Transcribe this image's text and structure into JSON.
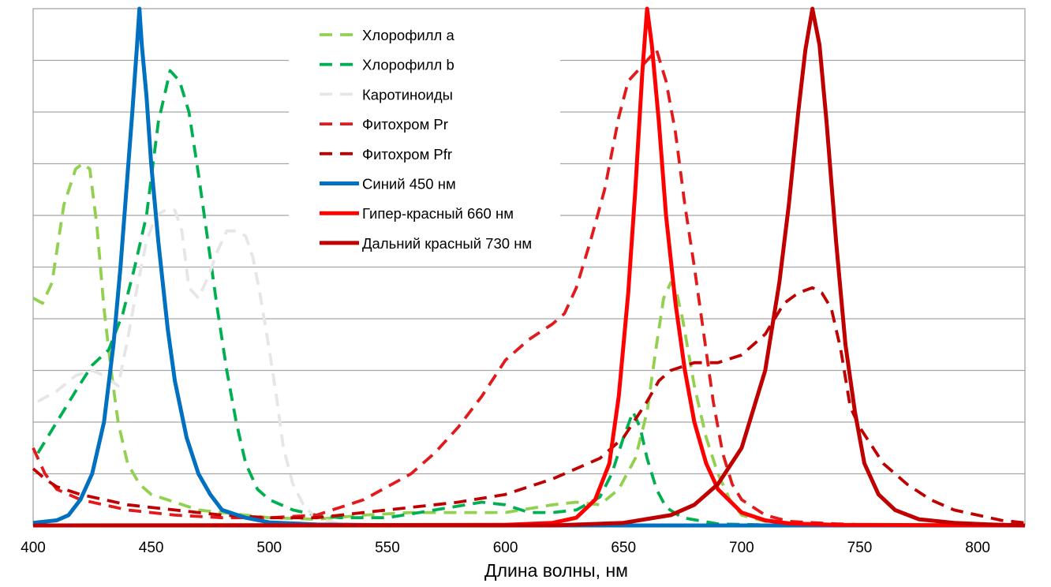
{
  "chart_data": {
    "type": "line",
    "xlabel": "Длина волны, нм",
    "ylabel": "",
    "xlim": [
      400,
      820
    ],
    "ylim": [
      0,
      1
    ],
    "x_ticks": [
      400,
      450,
      500,
      550,
      600,
      650,
      700,
      750,
      800
    ],
    "y_gridlines": 10,
    "grid": true,
    "legend_position": "top-center",
    "series": [
      {
        "name": "Хлорофилл a",
        "color": "#92D050",
        "dash": "dashed",
        "points": [
          [
            400,
            0.44
          ],
          [
            404,
            0.43
          ],
          [
            408,
            0.47
          ],
          [
            413,
            0.62
          ],
          [
            418,
            0.69
          ],
          [
            421,
            0.7
          ],
          [
            424,
            0.69
          ],
          [
            427,
            0.58
          ],
          [
            430,
            0.42
          ],
          [
            433,
            0.3
          ],
          [
            436,
            0.2
          ],
          [
            440,
            0.12
          ],
          [
            445,
            0.08
          ],
          [
            450,
            0.06
          ],
          [
            460,
            0.045
          ],
          [
            470,
            0.03
          ],
          [
            480,
            0.025
          ],
          [
            500,
            0.015
          ],
          [
            520,
            0.012
          ],
          [
            540,
            0.02
          ],
          [
            560,
            0.025
          ],
          [
            580,
            0.025
          ],
          [
            600,
            0.025
          ],
          [
            620,
            0.04
          ],
          [
            630,
            0.045
          ],
          [
            640,
            0.04
          ],
          [
            648,
            0.07
          ],
          [
            655,
            0.13
          ],
          [
            660,
            0.22
          ],
          [
            664,
            0.35
          ],
          [
            667,
            0.44
          ],
          [
            670,
            0.47
          ],
          [
            672,
            0.46
          ],
          [
            675,
            0.4
          ],
          [
            680,
            0.27
          ],
          [
            685,
            0.17
          ],
          [
            690,
            0.1
          ],
          [
            695,
            0.05
          ],
          [
            700,
            0.02
          ],
          [
            710,
            0.008
          ],
          [
            730,
            0.003
          ],
          [
            760,
            0.0
          ],
          [
            820,
            0.0
          ]
        ]
      },
      {
        "name": "Хлорофилл b",
        "color": "#00B050",
        "dash": "dashed",
        "points": [
          [
            402,
            0.14
          ],
          [
            410,
            0.2
          ],
          [
            418,
            0.26
          ],
          [
            425,
            0.31
          ],
          [
            432,
            0.34
          ],
          [
            438,
            0.41
          ],
          [
            443,
            0.5
          ],
          [
            448,
            0.6
          ],
          [
            453,
            0.78
          ],
          [
            458,
            0.88
          ],
          [
            462,
            0.86
          ],
          [
            466,
            0.8
          ],
          [
            470,
            0.68
          ],
          [
            474,
            0.55
          ],
          [
            478,
            0.42
          ],
          [
            482,
            0.3
          ],
          [
            486,
            0.2
          ],
          [
            490,
            0.12
          ],
          [
            495,
            0.07
          ],
          [
            500,
            0.05
          ],
          [
            510,
            0.03
          ],
          [
            520,
            0.02
          ],
          [
            530,
            0.015
          ],
          [
            550,
            0.015
          ],
          [
            570,
            0.03
          ],
          [
            590,
            0.045
          ],
          [
            600,
            0.04
          ],
          [
            610,
            0.025
          ],
          [
            620,
            0.025
          ],
          [
            630,
            0.03
          ],
          [
            640,
            0.055
          ],
          [
            645,
            0.1
          ],
          [
            650,
            0.17
          ],
          [
            654,
            0.22
          ],
          [
            657,
            0.19
          ],
          [
            660,
            0.13
          ],
          [
            664,
            0.07
          ],
          [
            668,
            0.035
          ],
          [
            675,
            0.015
          ],
          [
            690,
            0.003
          ],
          [
            720,
            0.0
          ],
          [
            820,
            0.0
          ]
        ]
      },
      {
        "name": "Каротиноиды",
        "color": "#E7E6E6",
        "dash": "dashed",
        "points": [
          [
            402,
            0.24
          ],
          [
            410,
            0.26
          ],
          [
            418,
            0.29
          ],
          [
            425,
            0.3
          ],
          [
            430,
            0.29
          ],
          [
            436,
            0.27
          ],
          [
            440,
            0.36
          ],
          [
            444,
            0.46
          ],
          [
            448,
            0.55
          ],
          [
            452,
            0.6
          ],
          [
            456,
            0.61
          ],
          [
            460,
            0.61
          ],
          [
            463,
            0.57
          ],
          [
            466,
            0.46
          ],
          [
            470,
            0.44
          ],
          [
            474,
            0.48
          ],
          [
            478,
            0.53
          ],
          [
            482,
            0.57
          ],
          [
            486,
            0.57
          ],
          [
            490,
            0.56
          ],
          [
            493,
            0.52
          ],
          [
            496,
            0.45
          ],
          [
            500,
            0.34
          ],
          [
            503,
            0.25
          ],
          [
            506,
            0.15
          ],
          [
            510,
            0.08
          ],
          [
            515,
            0.035
          ],
          [
            520,
            0.015
          ],
          [
            530,
            0.003
          ],
          [
            550,
            0.0
          ],
          [
            820,
            0.0
          ]
        ]
      },
      {
        "name": "Фитохром Pr",
        "color": "#E31A1C",
        "dash": "dashed",
        "points": [
          [
            400,
            0.15
          ],
          [
            405,
            0.1
          ],
          [
            410,
            0.07
          ],
          [
            420,
            0.05
          ],
          [
            440,
            0.03
          ],
          [
            460,
            0.02
          ],
          [
            480,
            0.015
          ],
          [
            500,
            0.015
          ],
          [
            520,
            0.02
          ],
          [
            540,
            0.05
          ],
          [
            560,
            0.1
          ],
          [
            570,
            0.14
          ],
          [
            580,
            0.19
          ],
          [
            590,
            0.25
          ],
          [
            600,
            0.32
          ],
          [
            610,
            0.36
          ],
          [
            620,
            0.39
          ],
          [
            625,
            0.41
          ],
          [
            630,
            0.46
          ],
          [
            636,
            0.55
          ],
          [
            642,
            0.65
          ],
          [
            648,
            0.79
          ],
          [
            652,
            0.86
          ],
          [
            656,
            0.88
          ],
          [
            660,
            0.9
          ],
          [
            664,
            0.92
          ],
          [
            668,
            0.86
          ],
          [
            672,
            0.76
          ],
          [
            676,
            0.62
          ],
          [
            680,
            0.5
          ],
          [
            684,
            0.37
          ],
          [
            688,
            0.24
          ],
          [
            692,
            0.14
          ],
          [
            696,
            0.08
          ],
          [
            700,
            0.05
          ],
          [
            710,
            0.02
          ],
          [
            720,
            0.008
          ],
          [
            740,
            0.003
          ],
          [
            760,
            0.0
          ],
          [
            820,
            0.0
          ]
        ]
      },
      {
        "name": "Фитохром Pfr",
        "color": "#C00000",
        "dash": "dashed",
        "points": [
          [
            400,
            0.11
          ],
          [
            405,
            0.09
          ],
          [
            410,
            0.075
          ],
          [
            420,
            0.06
          ],
          [
            440,
            0.04
          ],
          [
            460,
            0.03
          ],
          [
            480,
            0.02
          ],
          [
            500,
            0.015
          ],
          [
            520,
            0.015
          ],
          [
            540,
            0.025
          ],
          [
            560,
            0.035
          ],
          [
            580,
            0.045
          ],
          [
            600,
            0.06
          ],
          [
            620,
            0.09
          ],
          [
            640,
            0.13
          ],
          [
            650,
            0.17
          ],
          [
            660,
            0.24
          ],
          [
            665,
            0.28
          ],
          [
            670,
            0.3
          ],
          [
            680,
            0.315
          ],
          [
            690,
            0.315
          ],
          [
            700,
            0.33
          ],
          [
            710,
            0.37
          ],
          [
            718,
            0.43
          ],
          [
            724,
            0.45
          ],
          [
            730,
            0.46
          ],
          [
            734,
            0.45
          ],
          [
            738,
            0.42
          ],
          [
            742,
            0.34
          ],
          [
            746,
            0.23
          ],
          [
            750,
            0.19
          ],
          [
            760,
            0.12
          ],
          [
            770,
            0.08
          ],
          [
            780,
            0.05
          ],
          [
            790,
            0.03
          ],
          [
            800,
            0.02
          ],
          [
            810,
            0.01
          ],
          [
            820,
            0.005
          ]
        ]
      },
      {
        "name": "Синий 450 нм",
        "color": "#0070C0",
        "dash": "solid",
        "points": [
          [
            400,
            0.005
          ],
          [
            410,
            0.01
          ],
          [
            415,
            0.02
          ],
          [
            420,
            0.05
          ],
          [
            425,
            0.1
          ],
          [
            430,
            0.2
          ],
          [
            434,
            0.35
          ],
          [
            437,
            0.5
          ],
          [
            440,
            0.68
          ],
          [
            442,
            0.8
          ],
          [
            444,
            0.93
          ],
          [
            445,
            1.0
          ],
          [
            446,
            0.93
          ],
          [
            448,
            0.83
          ],
          [
            450,
            0.7
          ],
          [
            453,
            0.55
          ],
          [
            457,
            0.38
          ],
          [
            460,
            0.28
          ],
          [
            465,
            0.17
          ],
          [
            470,
            0.1
          ],
          [
            475,
            0.06
          ],
          [
            480,
            0.03
          ],
          [
            490,
            0.015
          ],
          [
            500,
            0.006
          ],
          [
            520,
            0.002
          ],
          [
            560,
            0.0
          ],
          [
            820,
            0.0
          ]
        ]
      },
      {
        "name": "Гипер-красный 660 нм",
        "color": "#FF0000",
        "dash": "solid",
        "points": [
          [
            400,
            0.0
          ],
          [
            600,
            0.001
          ],
          [
            620,
            0.005
          ],
          [
            630,
            0.015
          ],
          [
            638,
            0.05
          ],
          [
            644,
            0.12
          ],
          [
            648,
            0.25
          ],
          [
            652,
            0.45
          ],
          [
            655,
            0.65
          ],
          [
            658,
            0.88
          ],
          [
            660,
            1.0
          ],
          [
            662,
            0.93
          ],
          [
            665,
            0.78
          ],
          [
            668,
            0.6
          ],
          [
            672,
            0.43
          ],
          [
            676,
            0.3
          ],
          [
            680,
            0.2
          ],
          [
            685,
            0.12
          ],
          [
            690,
            0.07
          ],
          [
            700,
            0.025
          ],
          [
            710,
            0.01
          ],
          [
            720,
            0.004
          ],
          [
            740,
            0.001
          ],
          [
            820,
            0.0
          ]
        ]
      },
      {
        "name": "Дальний красный 730 нм",
        "color": "#C00000",
        "dash": "solid",
        "points": [
          [
            400,
            0.0
          ],
          [
            620,
            0.0
          ],
          [
            650,
            0.005
          ],
          [
            670,
            0.02
          ],
          [
            680,
            0.04
          ],
          [
            690,
            0.08
          ],
          [
            700,
            0.15
          ],
          [
            710,
            0.3
          ],
          [
            716,
            0.47
          ],
          [
            720,
            0.62
          ],
          [
            724,
            0.8
          ],
          [
            727,
            0.92
          ],
          [
            730,
            1.0
          ],
          [
            733,
            0.93
          ],
          [
            736,
            0.78
          ],
          [
            740,
            0.55
          ],
          [
            744,
            0.35
          ],
          [
            748,
            0.22
          ],
          [
            752,
            0.12
          ],
          [
            758,
            0.06
          ],
          [
            765,
            0.03
          ],
          [
            775,
            0.012
          ],
          [
            790,
            0.005
          ],
          [
            805,
            0.002
          ],
          [
            820,
            0.0
          ]
        ]
      }
    ]
  }
}
